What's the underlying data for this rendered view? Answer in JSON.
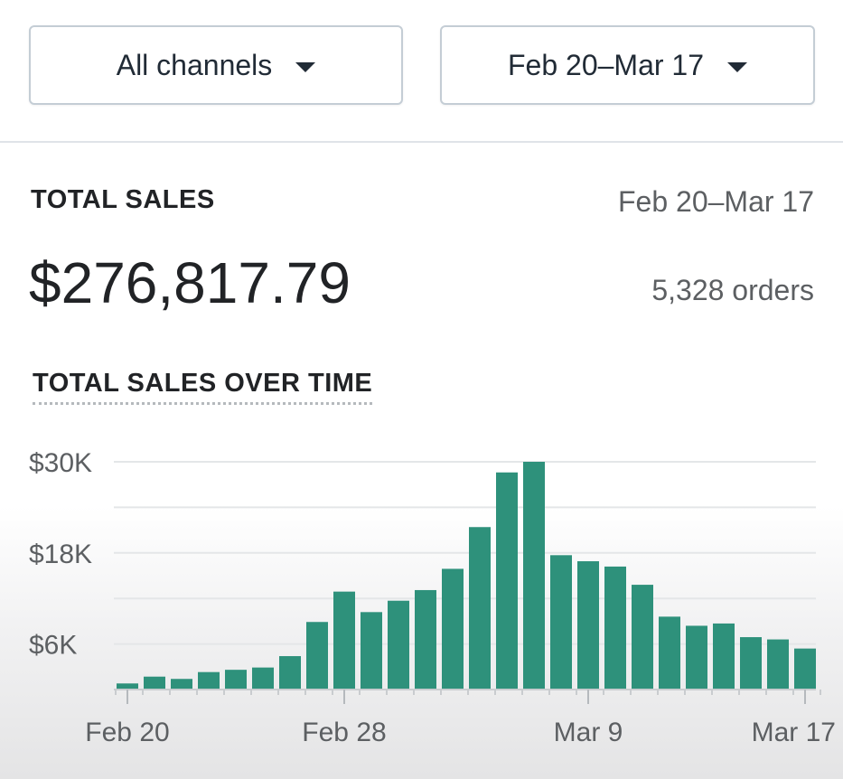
{
  "filters": {
    "channel": "All channels",
    "date_range": "Feb 20–Mar 17"
  },
  "summary": {
    "label": "TOTAL SALES",
    "range": "Feb 20–Mar 17",
    "value": "$276,817.79",
    "orders": "5,328 orders"
  },
  "chart_title": "TOTAL SALES OVER TIME",
  "colors": {
    "bar": "#2e917b",
    "grid": "#e4e6e8",
    "axis_text": "#5c5f62"
  },
  "chart_data": {
    "type": "bar",
    "title": "TOTAL SALES OVER TIME",
    "ylim": [
      0,
      30000
    ],
    "y_ticks": [
      {
        "value": 6000,
        "label": "$6K"
      },
      {
        "value": 18000,
        "label": "$18K"
      },
      {
        "value": 30000,
        "label": "$30K"
      }
    ],
    "gridlines": [
      6000,
      12000,
      18000,
      24000,
      30000
    ],
    "x_labels": [
      {
        "index": 0,
        "label": "Feb 20"
      },
      {
        "index": 8,
        "label": "Feb 28"
      },
      {
        "index": 17,
        "label": "Mar 9"
      },
      {
        "index": 25,
        "label": "Mar 17"
      }
    ],
    "values": [
      800,
      1700,
      1400,
      2300,
      2600,
      2900,
      4400,
      8900,
      12900,
      10200,
      11700,
      13100,
      15900,
      21400,
      28600,
      30000,
      17700,
      16900,
      16200,
      13800,
      9600,
      8400,
      8700,
      6900,
      6600,
      5400
    ]
  }
}
